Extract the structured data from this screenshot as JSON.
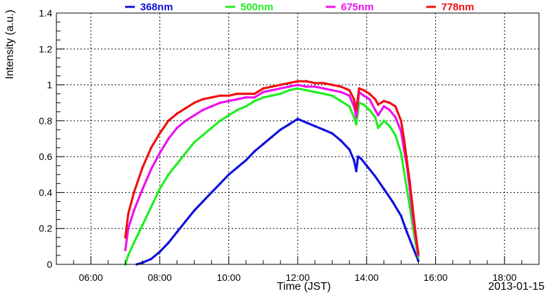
{
  "chart_data": {
    "type": "scatter",
    "title": "",
    "xlabel": "Time (JST)",
    "ylabel": "Intensity (a.u.)",
    "date_label": "2013-01-15",
    "xlim": [
      "05:00",
      "19:00"
    ],
    "ylim": [
      0,
      1.4
    ],
    "x_ticks": [
      "06:00",
      "08:00",
      "10:00",
      "12:00",
      "14:00",
      "16:00",
      "18:00"
    ],
    "y_ticks": [
      "0",
      "0.2",
      "0.4",
      "0.6",
      "0.8",
      "1",
      "1.2",
      "1.4"
    ],
    "grid": true,
    "legend_position": "top",
    "series": [
      {
        "name": "368nm",
        "color": "#1010dd",
        "points": [
          [
            "07:20",
            0.0
          ],
          [
            "07:30",
            0.01
          ],
          [
            "07:45",
            0.03
          ],
          [
            "08:00",
            0.07
          ],
          [
            "08:15",
            0.12
          ],
          [
            "08:30",
            0.18
          ],
          [
            "08:45",
            0.24
          ],
          [
            "09:00",
            0.3
          ],
          [
            "09:15",
            0.35
          ],
          [
            "09:30",
            0.4
          ],
          [
            "09:45",
            0.45
          ],
          [
            "10:00",
            0.5
          ],
          [
            "10:15",
            0.54
          ],
          [
            "10:30",
            0.58
          ],
          [
            "10:45",
            0.63
          ],
          [
            "11:00",
            0.67
          ],
          [
            "11:15",
            0.71
          ],
          [
            "11:30",
            0.75
          ],
          [
            "11:45",
            0.78
          ],
          [
            "12:00",
            0.81
          ],
          [
            "12:15",
            0.79
          ],
          [
            "12:30",
            0.77
          ],
          [
            "12:45",
            0.75
          ],
          [
            "13:00",
            0.73
          ],
          [
            "13:15",
            0.69
          ],
          [
            "13:30",
            0.64
          ],
          [
            "13:38",
            0.58
          ],
          [
            "13:42",
            0.52
          ],
          [
            "13:45",
            0.6
          ],
          [
            "13:50",
            0.59
          ],
          [
            "14:00",
            0.55
          ],
          [
            "14:15",
            0.49
          ],
          [
            "14:30",
            0.42
          ],
          [
            "14:45",
            0.35
          ],
          [
            "15:00",
            0.27
          ],
          [
            "15:10",
            0.18
          ],
          [
            "15:20",
            0.1
          ],
          [
            "15:30",
            0.02
          ]
        ]
      },
      {
        "name": "500nm",
        "color": "#20ee20",
        "points": [
          [
            "07:00",
            0.0
          ],
          [
            "07:05",
            0.05
          ],
          [
            "07:15",
            0.12
          ],
          [
            "07:30",
            0.22
          ],
          [
            "07:45",
            0.32
          ],
          [
            "08:00",
            0.42
          ],
          [
            "08:15",
            0.5
          ],
          [
            "08:30",
            0.56
          ],
          [
            "08:45",
            0.62
          ],
          [
            "09:00",
            0.68
          ],
          [
            "09:15",
            0.72
          ],
          [
            "09:30",
            0.76
          ],
          [
            "09:45",
            0.8
          ],
          [
            "10:00",
            0.83
          ],
          [
            "10:15",
            0.86
          ],
          [
            "10:30",
            0.88
          ],
          [
            "10:45",
            0.91
          ],
          [
            "11:00",
            0.93
          ],
          [
            "11:15",
            0.94
          ],
          [
            "11:30",
            0.95
          ],
          [
            "11:45",
            0.97
          ],
          [
            "12:00",
            0.98
          ],
          [
            "12:15",
            0.97
          ],
          [
            "12:30",
            0.96
          ],
          [
            "12:45",
            0.95
          ],
          [
            "13:00",
            0.94
          ],
          [
            "13:15",
            0.91
          ],
          [
            "13:30",
            0.88
          ],
          [
            "13:38",
            0.82
          ],
          [
            "13:42",
            0.78
          ],
          [
            "13:47",
            0.9
          ],
          [
            "13:55",
            0.89
          ],
          [
            "14:05",
            0.86
          ],
          [
            "14:15",
            0.82
          ],
          [
            "14:20",
            0.76
          ],
          [
            "14:30",
            0.8
          ],
          [
            "14:40",
            0.77
          ],
          [
            "14:50",
            0.72
          ],
          [
            "15:00",
            0.62
          ],
          [
            "15:05",
            0.52
          ],
          [
            "15:10",
            0.42
          ],
          [
            "15:15",
            0.32
          ],
          [
            "15:20",
            0.22
          ],
          [
            "15:25",
            0.12
          ],
          [
            "15:30",
            0.04
          ]
        ]
      },
      {
        "name": "675nm",
        "color": "#ee10ee",
        "points": [
          [
            "07:00",
            0.08
          ],
          [
            "07:05",
            0.2
          ],
          [
            "07:15",
            0.3
          ],
          [
            "07:30",
            0.42
          ],
          [
            "07:45",
            0.53
          ],
          [
            "08:00",
            0.62
          ],
          [
            "08:15",
            0.7
          ],
          [
            "08:30",
            0.76
          ],
          [
            "08:45",
            0.8
          ],
          [
            "09:00",
            0.83
          ],
          [
            "09:15",
            0.86
          ],
          [
            "09:30",
            0.88
          ],
          [
            "09:45",
            0.9
          ],
          [
            "10:00",
            0.91
          ],
          [
            "10:15",
            0.92
          ],
          [
            "10:30",
            0.93
          ],
          [
            "10:45",
            0.93
          ],
          [
            "11:00",
            0.96
          ],
          [
            "11:15",
            0.97
          ],
          [
            "11:30",
            0.98
          ],
          [
            "11:45",
            0.99
          ],
          [
            "12:00",
            1.0
          ],
          [
            "12:15",
            0.99
          ],
          [
            "12:30",
            0.99
          ],
          [
            "12:45",
            0.98
          ],
          [
            "13:00",
            0.97
          ],
          [
            "13:15",
            0.96
          ],
          [
            "13:30",
            0.94
          ],
          [
            "13:38",
            0.88
          ],
          [
            "13:42",
            0.82
          ],
          [
            "13:47",
            0.96
          ],
          [
            "13:55",
            0.94
          ],
          [
            "14:05",
            0.92
          ],
          [
            "14:15",
            0.86
          ],
          [
            "14:20",
            0.83
          ],
          [
            "14:30",
            0.88
          ],
          [
            "14:40",
            0.86
          ],
          [
            "14:50",
            0.82
          ],
          [
            "15:00",
            0.74
          ],
          [
            "15:05",
            0.64
          ],
          [
            "15:10",
            0.55
          ],
          [
            "15:15",
            0.42
          ],
          [
            "15:20",
            0.28
          ],
          [
            "15:25",
            0.16
          ],
          [
            "15:30",
            0.05
          ]
        ]
      },
      {
        "name": "778nm",
        "color": "#ee1010",
        "points": [
          [
            "07:00",
            0.15
          ],
          [
            "07:05",
            0.28
          ],
          [
            "07:15",
            0.4
          ],
          [
            "07:30",
            0.54
          ],
          [
            "07:45",
            0.65
          ],
          [
            "08:00",
            0.73
          ],
          [
            "08:15",
            0.8
          ],
          [
            "08:30",
            0.84
          ],
          [
            "08:45",
            0.87
          ],
          [
            "09:00",
            0.9
          ],
          [
            "09:15",
            0.92
          ],
          [
            "09:30",
            0.93
          ],
          [
            "09:45",
            0.94
          ],
          [
            "10:00",
            0.94
          ],
          [
            "10:15",
            0.95
          ],
          [
            "10:30",
            0.95
          ],
          [
            "10:45",
            0.95
          ],
          [
            "11:00",
            0.98
          ],
          [
            "11:15",
            0.99
          ],
          [
            "11:30",
            1.0
          ],
          [
            "11:45",
            1.01
          ],
          [
            "12:00",
            1.02
          ],
          [
            "12:15",
            1.02
          ],
          [
            "12:30",
            1.01
          ],
          [
            "12:45",
            1.01
          ],
          [
            "13:00",
            1.0
          ],
          [
            "13:15",
            0.99
          ],
          [
            "13:30",
            0.97
          ],
          [
            "13:38",
            0.92
          ],
          [
            "13:42",
            0.86
          ],
          [
            "13:47",
            0.98
          ],
          [
            "13:55",
            0.97
          ],
          [
            "14:05",
            0.95
          ],
          [
            "14:15",
            0.92
          ],
          [
            "14:20",
            0.89
          ],
          [
            "14:30",
            0.91
          ],
          [
            "14:40",
            0.9
          ],
          [
            "14:50",
            0.88
          ],
          [
            "15:00",
            0.8
          ],
          [
            "15:05",
            0.7
          ],
          [
            "15:10",
            0.58
          ],
          [
            "15:15",
            0.46
          ],
          [
            "15:20",
            0.32
          ],
          [
            "15:25",
            0.18
          ],
          [
            "15:30",
            0.06
          ]
        ]
      }
    ]
  }
}
